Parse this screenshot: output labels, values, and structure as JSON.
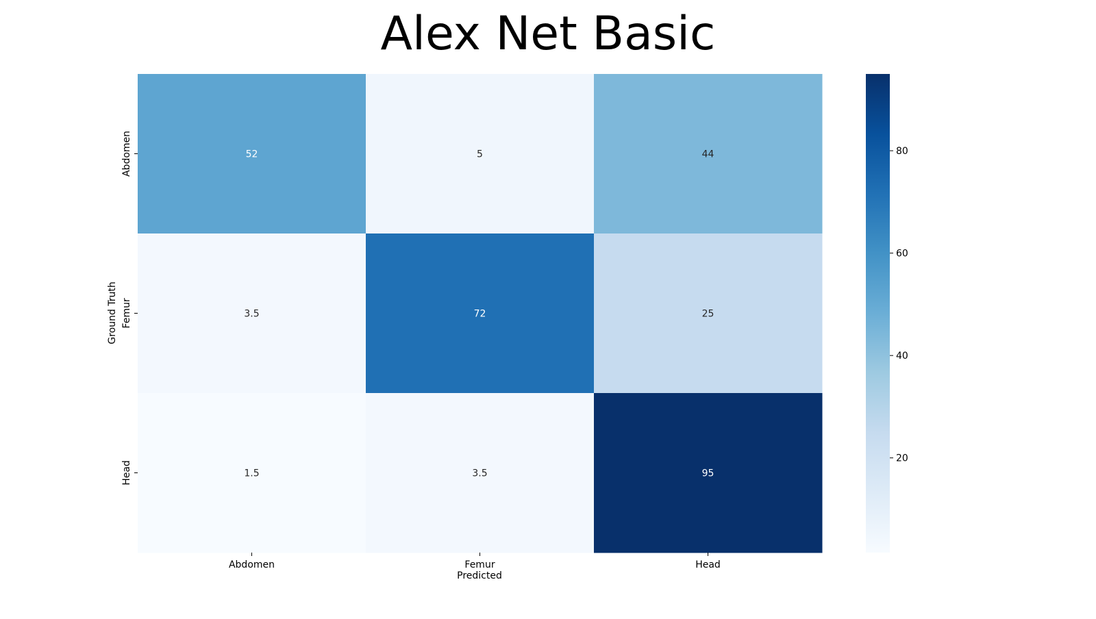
{
  "chart_data": {
    "type": "heatmap",
    "title": "Alex Net Basic",
    "xlabel": "Predicted",
    "ylabel": "Ground Truth",
    "x_categories": [
      "Abdomen",
      "Femur",
      "Head"
    ],
    "y_categories": [
      "Abdomen",
      "Femur",
      "Head"
    ],
    "values": [
      [
        52,
        5,
        44
      ],
      [
        3.5,
        72,
        25
      ],
      [
        1.5,
        3.5,
        95
      ]
    ],
    "cell_labels": [
      [
        "52",
        "5",
        "44"
      ],
      [
        "3.5",
        "72",
        "25"
      ],
      [
        "1.5",
        "3.5",
        "95"
      ]
    ],
    "colorbar": {
      "vmin": 1.5,
      "vmax": 95,
      "ticks": [
        20,
        40,
        60,
        80
      ],
      "tick_labels": [
        "20",
        "40",
        "60",
        "80"
      ]
    },
    "colormap": "Blues",
    "colormap_stops": [
      "#f7fbff",
      "#deebf7",
      "#c6dbef",
      "#9ecae1",
      "#6baed6",
      "#4292c6",
      "#2171b5",
      "#08519c",
      "#08306b"
    ],
    "annotation_colors": {
      "dark": "#262626",
      "light": "#ffffff"
    },
    "grid": false,
    "legend": "colorbar-right"
  }
}
